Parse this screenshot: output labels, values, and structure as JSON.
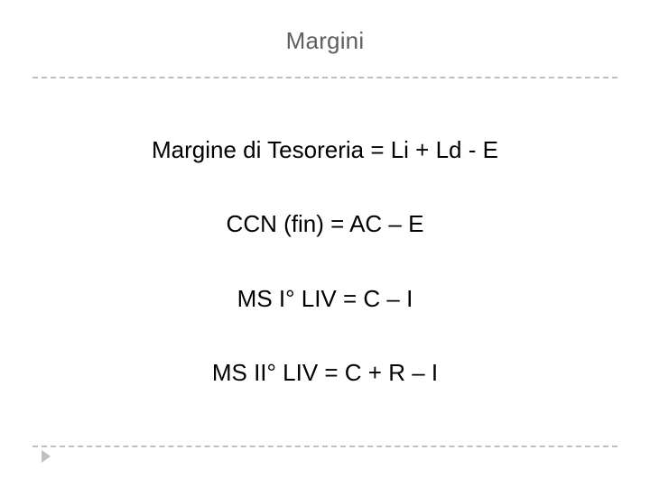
{
  "slide": {
    "title": "Margini",
    "lines": [
      "Margine di Tesoreria = Li + Ld - E",
      "CCN (fin) = AC – E",
      "MS I° LIV = C – I",
      "MS II° LIV = C + R – I"
    ]
  },
  "style": {
    "title_color": "#5f5f5f",
    "title_fontsize": 26,
    "body_color": "#000000",
    "body_fontsize": 26,
    "divider_color": "#bfbfbf",
    "arrow_color": "#bfbfbf",
    "background_color": "#ffffff",
    "font_family": "Arial, Helvetica, sans-serif"
  }
}
